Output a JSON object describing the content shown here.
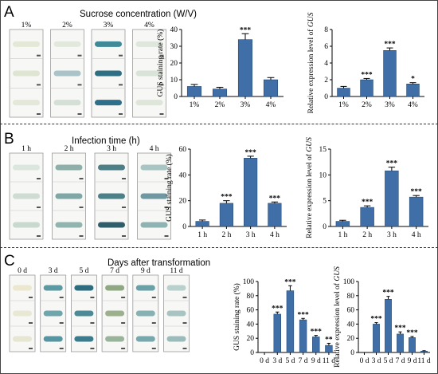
{
  "panels": [
    {
      "letter": "A",
      "photo_title": "Sucrose concentration (W/V)",
      "groups": [
        "1%",
        "2%",
        "3%",
        "4%"
      ],
      "sample_colors": [
        [
          "#e4e8d6",
          "#dfe5d3",
          "#e3e8d8"
        ],
        [
          "#e2e8db",
          "#a9c3c8",
          "#d4e0d6"
        ],
        [
          "#3f8a99",
          "#2f6f84",
          "#2e6f8a"
        ],
        [
          "#dfe6dc",
          "#d9e3d8",
          "#dee5d9"
        ]
      ]
    },
    {
      "letter": "B",
      "photo_title": "Infection time (h)",
      "groups": [
        "1 h",
        "2 h",
        "3 h",
        "4 h"
      ],
      "sample_colors": [
        [
          "#dbe6df",
          "#cfdcd3",
          "#c9d9cf"
        ],
        [
          "#8fb0aa",
          "#7ea7a6",
          "#92b4ae"
        ],
        [
          "#4e7f86",
          "#4c8189",
          "#2f5d6a"
        ],
        [
          "#a8c4c3",
          "#6f98a3",
          "#8fb2b2"
        ]
      ]
    },
    {
      "letter": "C",
      "photo_title": "Days after transformation",
      "groups": [
        "0 d",
        "3 d",
        "5 d",
        "7 d",
        "9 d",
        "11 d"
      ],
      "sample_colors": [
        [
          "#ece8cf",
          "#e8e8d4",
          "#e6e6d2"
        ],
        [
          "#5b9aa3",
          "#6fa6ac",
          "#5596a2"
        ],
        [
          "#2e6c80",
          "#4c8a98",
          "#3a7b8e"
        ],
        [
          "#8fa782",
          "#9cb08f",
          "#9ab49b"
        ],
        [
          "#6aa0a8",
          "#86b2b4",
          "#76a8ad"
        ],
        [
          "#b9d0cc",
          "#a8c3c1",
          "#9cbbbb"
        ]
      ]
    }
  ],
  "chart_data": [
    {
      "type": "bar",
      "panel": "A",
      "categories": [
        "1%",
        "2%",
        "3%",
        "4%"
      ],
      "values": [
        6,
        4.5,
        34,
        10
      ],
      "errors": [
        1.2,
        1,
        3.5,
        1.3
      ],
      "significance": [
        "",
        "",
        "***",
        ""
      ],
      "ylabel": "GUS staining rate (%)",
      "ylim": [
        0,
        40
      ],
      "yticks": [
        "0",
        "10",
        "20",
        "30",
        "40"
      ],
      "color": "#3f6fa6"
    },
    {
      "type": "bar",
      "panel": "A",
      "categories": [
        "1%",
        "2%",
        "3%",
        "4%"
      ],
      "values": [
        1,
        2,
        5.5,
        1.5
      ],
      "errors": [
        0.2,
        0.15,
        0.3,
        0.15
      ],
      "significance": [
        "",
        "***",
        "***",
        "*"
      ],
      "ylabel": "Relative expression level of",
      "ylabel_gene": "GUS",
      "ylim": [
        0,
        8
      ],
      "yticks": [
        "0",
        "2",
        "4",
        "6",
        "8"
      ],
      "color": "#3f6fa6"
    },
    {
      "type": "bar",
      "panel": "B",
      "categories": [
        "1 h",
        "2 h",
        "3 h",
        "4 h"
      ],
      "values": [
        4,
        18,
        53,
        18
      ],
      "errors": [
        1,
        2,
        1.5,
        1
      ],
      "significance": [
        "",
        "***",
        "***",
        "***"
      ],
      "ylabel": "GUS staining rate (%)",
      "ylim": [
        0,
        60
      ],
      "yticks": [
        "0",
        "20",
        "40",
        "60"
      ],
      "color": "#3f6fa6"
    },
    {
      "type": "bar",
      "panel": "B",
      "categories": [
        "1 h",
        "2 h",
        "3 h",
        "4 h"
      ],
      "values": [
        1,
        3.7,
        10.8,
        5.7
      ],
      "errors": [
        0.2,
        0.3,
        0.7,
        0.3
      ],
      "significance": [
        "",
        "***",
        "***",
        "***"
      ],
      "ylabel": "Relative expression level of",
      "ylabel_gene": "GUS",
      "ylim": [
        0,
        15
      ],
      "yticks": [
        "0",
        "5",
        "10",
        "15"
      ],
      "color": "#3f6fa6"
    },
    {
      "type": "bar",
      "panel": "C",
      "categories": [
        "0 d",
        "3 d",
        "5 d",
        "7 d",
        "9 d",
        "11 d"
      ],
      "values": [
        0,
        54,
        87,
        46,
        22,
        10
      ],
      "errors": [
        0,
        3,
        7,
        2,
        2,
        3
      ],
      "significance": [
        "",
        "***",
        "***",
        "***",
        "***",
        "**"
      ],
      "ylabel": "GUS staining rate (%)",
      "ylim": [
        0,
        100
      ],
      "yticks": [
        "0",
        "20",
        "40",
        "60",
        "80",
        "100"
      ],
      "color": "#3f6fa6"
    },
    {
      "type": "bar",
      "panel": "C",
      "categories": [
        "0 d",
        "3 d",
        "5 d",
        "7 d",
        "9 d",
        "11 d"
      ],
      "values": [
        0,
        40,
        75,
        26,
        21,
        2
      ],
      "errors": [
        0,
        2,
        4,
        3,
        1.5,
        0.5
      ],
      "significance": [
        "",
        "***",
        "***",
        "***",
        "***",
        ""
      ],
      "ylabel": "Relative expression level of",
      "ylabel_gene": "GUS",
      "ylim": [
        0,
        100
      ],
      "yticks": [
        "0",
        "20",
        "40",
        "60",
        "80",
        "100"
      ],
      "color": "#3f6fa6"
    }
  ]
}
